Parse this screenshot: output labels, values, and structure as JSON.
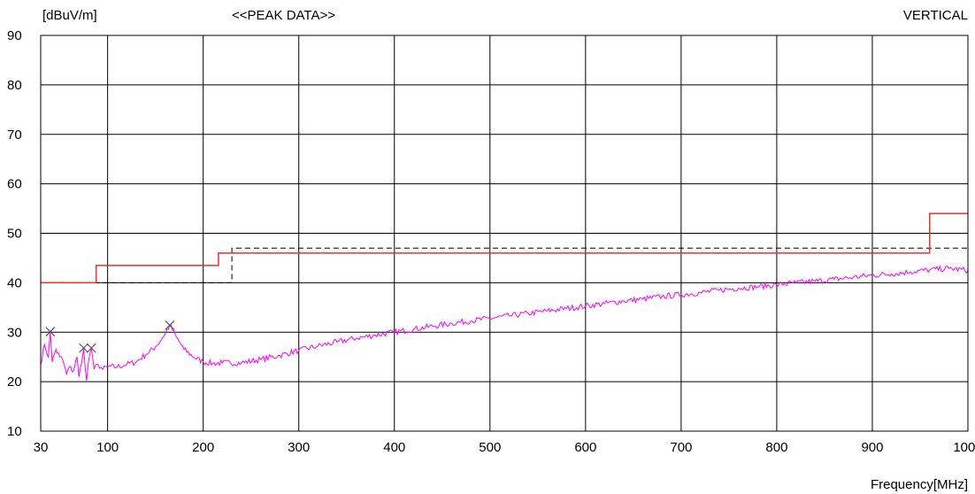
{
  "chart_data": {
    "type": "line",
    "ylabel": "[dBuV/m]",
    "title": "<<PEAK DATA>>",
    "polarization_label": "VERTICAL",
    "xlabel": "Frequency[MHz]",
    "xlim": [
      30,
      1000
    ],
    "ylim": [
      10,
      90
    ],
    "x_ticks": [
      30,
      100,
      200,
      300,
      400,
      500,
      600,
      700,
      800,
      900,
      1000
    ],
    "y_ticks": [
      10,
      20,
      30,
      40,
      50,
      60,
      70,
      80,
      90
    ],
    "grid": true,
    "colors": {
      "measurement": "#ff00ff",
      "limit": "#e8322a",
      "limit_dashed": "#000000",
      "marker": "#555555",
      "polarization": "#ff00ff"
    },
    "limit_line": {
      "x": [
        30,
        88,
        88,
        216,
        216,
        230,
        230,
        960,
        960,
        1000
      ],
      "y": [
        40,
        40,
        43.5,
        43.5,
        46,
        46,
        46,
        46,
        54,
        54
      ]
    },
    "limit_line_dashed": {
      "x": [
        30,
        88,
        230,
        230,
        1000
      ],
      "y": [
        40,
        40,
        40,
        47,
        47
      ]
    },
    "markers": [
      {
        "x": 40,
        "y": 30.1
      },
      {
        "x": 75,
        "y": 26.8
      },
      {
        "x": 83,
        "y": 26.8
      },
      {
        "x": 165,
        "y": 31.4
      }
    ],
    "series": [
      {
        "values": [
          {
            "x": 30,
            "y": 23.5
          },
          {
            "x": 34,
            "y": 27.5
          },
          {
            "x": 38,
            "y": 25.0
          },
          {
            "x": 40,
            "y": 30.1
          },
          {
            "x": 42,
            "y": 24.0
          },
          {
            "x": 46,
            "y": 26.5
          },
          {
            "x": 50,
            "y": 25.0
          },
          {
            "x": 53,
            "y": 24.5
          },
          {
            "x": 57,
            "y": 21.5
          },
          {
            "x": 60,
            "y": 23.0
          },
          {
            "x": 64,
            "y": 22.0
          },
          {
            "x": 68,
            "y": 25.0
          },
          {
            "x": 70,
            "y": 21.0
          },
          {
            "x": 73,
            "y": 24.0
          },
          {
            "x": 75,
            "y": 26.8
          },
          {
            "x": 78,
            "y": 20.2
          },
          {
            "x": 80,
            "y": 24.0
          },
          {
            "x": 83,
            "y": 26.8
          },
          {
            "x": 86,
            "y": 22.5
          },
          {
            "x": 90,
            "y": 23.5
          },
          {
            "x": 95,
            "y": 22.5
          },
          {
            "x": 100,
            "y": 23.0
          },
          {
            "x": 110,
            "y": 23.0
          },
          {
            "x": 120,
            "y": 23.5
          },
          {
            "x": 130,
            "y": 24.0
          },
          {
            "x": 140,
            "y": 25.5
          },
          {
            "x": 150,
            "y": 27.0
          },
          {
            "x": 158,
            "y": 29.0
          },
          {
            "x": 165,
            "y": 31.4
          },
          {
            "x": 172,
            "y": 29.0
          },
          {
            "x": 180,
            "y": 26.5
          },
          {
            "x": 190,
            "y": 25.0
          },
          {
            "x": 200,
            "y": 24.0
          },
          {
            "x": 210,
            "y": 23.7
          },
          {
            "x": 220,
            "y": 23.8
          },
          {
            "x": 240,
            "y": 23.8
          },
          {
            "x": 260,
            "y": 24.5
          },
          {
            "x": 280,
            "y": 25.3
          },
          {
            "x": 300,
            "y": 26.3
          },
          {
            "x": 320,
            "y": 27.2
          },
          {
            "x": 340,
            "y": 28.0
          },
          {
            "x": 360,
            "y": 28.8
          },
          {
            "x": 380,
            "y": 29.4
          },
          {
            "x": 400,
            "y": 30.0
          },
          {
            "x": 420,
            "y": 30.6
          },
          {
            "x": 440,
            "y": 31.2
          },
          {
            "x": 460,
            "y": 31.8
          },
          {
            "x": 480,
            "y": 32.3
          },
          {
            "x": 500,
            "y": 32.8
          },
          {
            "x": 520,
            "y": 33.3
          },
          {
            "x": 540,
            "y": 33.8
          },
          {
            "x": 560,
            "y": 34.3
          },
          {
            "x": 580,
            "y": 34.8
          },
          {
            "x": 600,
            "y": 35.3
          },
          {
            "x": 620,
            "y": 35.8
          },
          {
            "x": 640,
            "y": 36.3
          },
          {
            "x": 660,
            "y": 36.7
          },
          {
            "x": 680,
            "y": 37.2
          },
          {
            "x": 700,
            "y": 37.6
          },
          {
            "x": 720,
            "y": 38.0
          },
          {
            "x": 740,
            "y": 38.5
          },
          {
            "x": 760,
            "y": 38.9
          },
          {
            "x": 780,
            "y": 39.2
          },
          {
            "x": 800,
            "y": 39.6
          },
          {
            "x": 820,
            "y": 40.0
          },
          {
            "x": 840,
            "y": 40.3
          },
          {
            "x": 860,
            "y": 40.7
          },
          {
            "x": 880,
            "y": 41.1
          },
          {
            "x": 900,
            "y": 41.5
          },
          {
            "x": 920,
            "y": 41.8
          },
          {
            "x": 940,
            "y": 42.2
          },
          {
            "x": 960,
            "y": 42.6
          },
          {
            "x": 980,
            "y": 42.9
          },
          {
            "x": 1000,
            "y": 42.5
          }
        ]
      }
    ]
  }
}
